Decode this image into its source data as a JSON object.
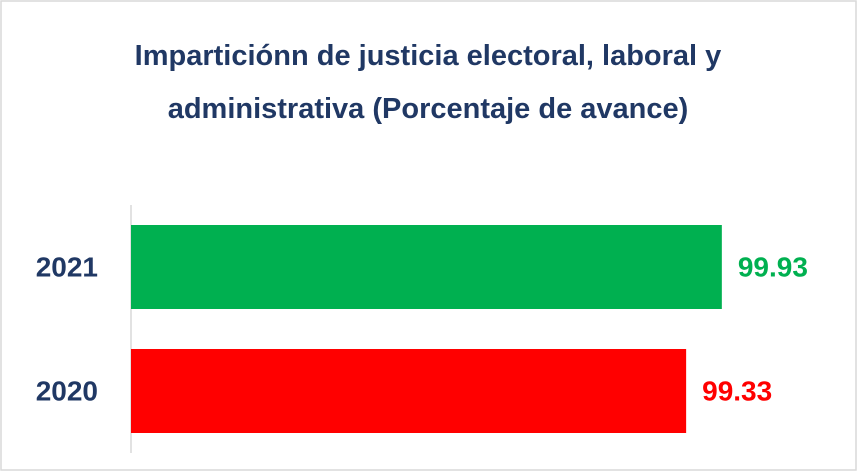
{
  "chart_data": {
    "type": "bar",
    "orientation": "horizontal",
    "title": "Imparticiónn de justicia electoral, laboral y administrativa (Porcentaje de avance)",
    "categories": [
      "2021",
      "2020"
    ],
    "values": [
      99.93,
      99.33
    ],
    "colors": [
      "#00b050",
      "#ff0000"
    ],
    "xlim": [
      90,
      100
    ],
    "grid": false
  }
}
